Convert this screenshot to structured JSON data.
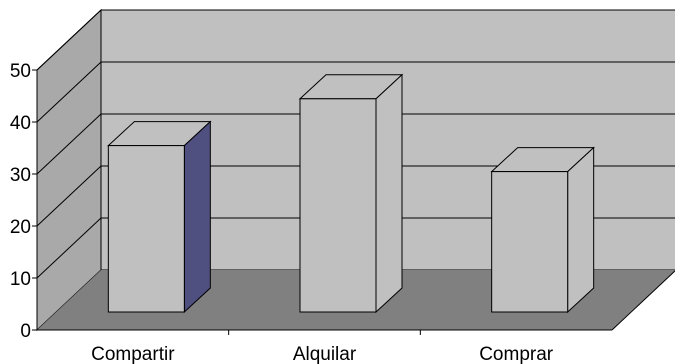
{
  "chart_data": {
    "type": "bar",
    "categories": [
      "Compartir",
      "Alquilar",
      "Comprar"
    ],
    "values": [
      32,
      41,
      27
    ],
    "ylim": [
      0,
      50
    ],
    "yticks": [
      0,
      10,
      20,
      30,
      40,
      50
    ],
    "grid": true,
    "three_d": true,
    "colors": {
      "back_wall": "#c0c0c0",
      "side_wall": "#a9a9a9",
      "floor": "#808080",
      "bar_front": "#c0c0c0",
      "bar_top": "#c0c0c0",
      "bar_side_default": "#c0c0c0",
      "bar_side_highlight": "#4f4f80",
      "outline": "#000000"
    },
    "highlighted_bar_index": 0
  }
}
